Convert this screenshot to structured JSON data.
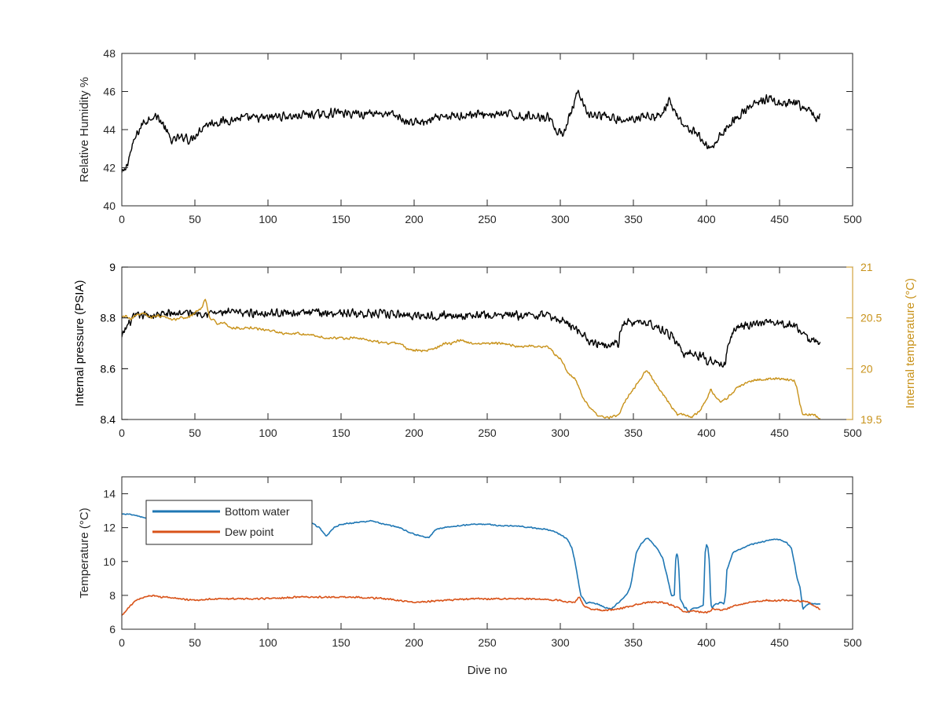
{
  "colors": {
    "humidity": "#000000",
    "pressure": "#000000",
    "internal_temperature": "#c8921a",
    "bottom_water": "#1f77b4",
    "dew_point": "#d95319",
    "axes": "#262626",
    "right_axis": "#c8921a"
  },
  "chart_data": [
    {
      "type": "line",
      "title": "",
      "xlabel": "",
      "ylabel": "Relative Humidity %",
      "xlim": [
        0,
        500
      ],
      "ylim": [
        40,
        48
      ],
      "xticks": [
        "0",
        "50",
        "100",
        "150",
        "200",
        "250",
        "300",
        "350",
        "400",
        "450",
        "500"
      ],
      "yticks": [
        "40",
        "42",
        "44",
        "46",
        "48"
      ],
      "series": [
        {
          "key": "rh",
          "x": [
            0,
            2,
            4,
            6,
            8,
            10,
            12,
            15,
            18,
            20,
            22,
            24,
            26,
            28,
            30,
            33,
            36,
            38,
            40,
            44,
            46,
            48,
            50,
            52,
            54,
            56,
            58,
            60,
            64,
            68,
            72,
            76,
            80,
            85,
            90,
            95,
            100,
            105,
            110,
            115,
            120,
            125,
            130,
            135,
            140,
            145,
            148,
            150,
            155,
            160,
            165,
            170,
            175,
            180,
            185,
            190,
            195,
            200,
            205,
            210,
            215,
            220,
            225,
            230,
            235,
            240,
            245,
            250,
            255,
            260,
            265,
            270,
            275,
            280,
            285,
            290,
            293,
            295,
            297,
            300,
            303,
            306,
            308,
            310,
            312,
            314,
            316,
            318,
            320,
            325,
            330,
            335,
            340,
            345,
            350,
            355,
            360,
            365,
            370,
            372,
            374,
            376,
            378,
            380,
            383,
            386,
            390,
            393,
            396,
            399,
            402,
            405,
            408,
            410,
            415,
            420,
            425,
            430,
            435,
            440,
            445,
            450,
            455,
            460,
            465,
            470,
            475,
            478
          ],
          "y": [
            41.7,
            41.8,
            42.3,
            42.8,
            43.3,
            43.7,
            44.0,
            44.4,
            44.5,
            44.7,
            44.7,
            44.7,
            44.5,
            44.3,
            44.0,
            43.5,
            43.4,
            43.6,
            43.5,
            43.7,
            43.4,
            43.5,
            43.7,
            43.9,
            44.0,
            44.2,
            44.3,
            44.3,
            44.4,
            44.4,
            44.5,
            44.5,
            44.6,
            44.6,
            44.6,
            44.6,
            44.6,
            44.7,
            44.7,
            44.7,
            44.7,
            44.8,
            44.8,
            44.8,
            44.8,
            44.9,
            44.9,
            44.9,
            44.8,
            44.9,
            44.8,
            44.9,
            44.9,
            44.8,
            44.8,
            44.6,
            44.4,
            44.4,
            44.4,
            44.4,
            44.6,
            44.6,
            44.7,
            44.7,
            44.8,
            44.8,
            44.8,
            44.8,
            44.8,
            44.8,
            44.8,
            44.7,
            44.7,
            44.7,
            44.7,
            44.7,
            44.6,
            44.4,
            43.9,
            43.8,
            44.0,
            44.6,
            45.0,
            45.5,
            45.9,
            45.6,
            45.2,
            44.9,
            44.8,
            44.7,
            44.7,
            44.6,
            44.5,
            44.4,
            44.6,
            44.7,
            44.7,
            44.7,
            44.8,
            45.2,
            45.5,
            45.3,
            45.0,
            44.8,
            44.4,
            44.1,
            44.0,
            43.8,
            43.5,
            43.3,
            43.0,
            43.2,
            43.5,
            43.8,
            44.2,
            44.6,
            44.9,
            45.2,
            45.4,
            45.6,
            45.6,
            45.3,
            45.3,
            45.4,
            45.2,
            45.0,
            44.6,
            44.7
          ],
          "noise": 0.55
        }
      ]
    },
    {
      "type": "line",
      "title": "",
      "xlabel": "",
      "ylabel": "Internal pressure (PSIA)",
      "ylabel_right": "Internal temperature (°C)",
      "xlim": [
        0,
        500
      ],
      "ylim": [
        8.4,
        9
      ],
      "ylim_right": [
        19.5,
        21
      ],
      "xticks": [
        "0",
        "50",
        "100",
        "150",
        "200",
        "250",
        "300",
        "350",
        "400",
        "450",
        "500"
      ],
      "yticks": [
        "8.4",
        "8.6",
        "8.8",
        "9"
      ],
      "yticks_right": [
        "19.5",
        "20",
        "20.5",
        "21"
      ],
      "series": [
        {
          "key": "pressure",
          "axis": "left",
          "x": [
            0,
            2,
            5,
            8,
            12,
            20,
            40,
            60,
            80,
            100,
            150,
            200,
            250,
            280,
            290,
            295,
            300,
            305,
            310,
            315,
            320,
            325,
            330,
            335,
            340,
            341,
            343,
            345,
            350,
            355,
            360,
            365,
            370,
            375,
            378,
            380,
            385,
            390,
            395,
            398,
            400,
            402,
            405,
            410,
            413,
            415,
            418,
            420,
            425,
            430,
            440,
            450,
            460,
            465,
            468,
            470,
            472,
            475,
            478
          ],
          "y": [
            8.72,
            8.75,
            8.78,
            8.8,
            8.81,
            8.81,
            8.82,
            8.82,
            8.82,
            8.82,
            8.82,
            8.81,
            8.81,
            8.81,
            8.81,
            8.8,
            8.79,
            8.78,
            8.76,
            8.74,
            8.71,
            8.7,
            8.7,
            8.7,
            8.7,
            8.75,
            8.77,
            8.78,
            8.78,
            8.78,
            8.78,
            8.77,
            8.75,
            8.73,
            8.72,
            8.7,
            8.66,
            8.66,
            8.65,
            8.65,
            8.62,
            8.64,
            8.63,
            8.61,
            8.62,
            8.7,
            8.74,
            8.76,
            8.77,
            8.77,
            8.78,
            8.78,
            8.77,
            8.75,
            8.72,
            8.71,
            8.71,
            8.71,
            8.71
          ],
          "noise": 0.04
        },
        {
          "key": "internal_temperature",
          "axis": "right",
          "x": [
            0,
            3,
            6,
            10,
            15,
            20,
            25,
            30,
            35,
            40,
            45,
            50,
            55,
            57,
            60,
            65,
            70,
            75,
            80,
            90,
            100,
            110,
            120,
            130,
            140,
            150,
            160,
            170,
            180,
            190,
            195,
            200,
            205,
            210,
            215,
            220,
            225,
            230,
            240,
            250,
            260,
            270,
            280,
            290,
            293,
            296,
            300,
            303,
            306,
            310,
            313,
            316,
            320,
            325,
            330,
            335,
            340,
            342,
            345,
            350,
            355,
            358,
            361,
            365,
            370,
            375,
            380,
            385,
            390,
            395,
            400,
            403,
            406,
            410,
            415,
            420,
            430,
            440,
            450,
            460,
            462,
            464,
            466,
            470,
            474,
            478
          ],
          "y": [
            20.5,
            20.52,
            20.48,
            20.53,
            20.55,
            20.5,
            20.52,
            20.5,
            20.48,
            20.5,
            20.5,
            20.55,
            20.6,
            20.7,
            20.5,
            20.45,
            20.45,
            20.4,
            20.4,
            20.4,
            20.38,
            20.35,
            20.35,
            20.33,
            20.3,
            20.3,
            20.3,
            20.28,
            20.25,
            20.25,
            20.2,
            20.18,
            20.18,
            20.18,
            20.2,
            20.25,
            20.25,
            20.28,
            20.25,
            20.25,
            20.25,
            20.22,
            20.22,
            20.22,
            20.2,
            20.15,
            20.1,
            20.02,
            19.95,
            19.9,
            19.8,
            19.7,
            19.62,
            19.55,
            19.52,
            19.52,
            19.55,
            19.6,
            19.7,
            19.8,
            19.9,
            19.98,
            19.95,
            19.85,
            19.75,
            19.65,
            19.55,
            19.55,
            19.52,
            19.58,
            19.7,
            19.8,
            19.72,
            19.68,
            19.72,
            19.8,
            19.88,
            19.9,
            19.9,
            19.88,
            19.8,
            19.65,
            19.55,
            19.55,
            19.55,
            19.5
          ],
          "noise": 0.03
        }
      ]
    },
    {
      "type": "line",
      "title": "",
      "xlabel": "Dive no",
      "ylabel": "Temperature (°C)",
      "xlim": [
        0,
        500
      ],
      "ylim": [
        6,
        15
      ],
      "xticks": [
        "0",
        "50",
        "100",
        "150",
        "200",
        "250",
        "300",
        "350",
        "400",
        "450",
        "500"
      ],
      "yticks": [
        "6",
        "8",
        "10",
        "12",
        "14"
      ],
      "legend": {
        "position": "top-left",
        "entries": [
          "Bottom water",
          "Dew point"
        ]
      },
      "series": [
        {
          "key": "bottom_water",
          "name": "Bottom water",
          "x": [
            0,
            5,
            10,
            15,
            20,
            30,
            40,
            50,
            60,
            70,
            80,
            90,
            100,
            110,
            120,
            130,
            135,
            140,
            145,
            150,
            160,
            170,
            180,
            190,
            200,
            205,
            210,
            212,
            215,
            220,
            230,
            240,
            250,
            260,
            270,
            280,
            290,
            295,
            300,
            305,
            308,
            310,
            312,
            314,
            316,
            318,
            320,
            325,
            330,
            335,
            340,
            345,
            348,
            350,
            352,
            355,
            358,
            360,
            363,
            366,
            368,
            370,
            372,
            374,
            376,
            378,
            379,
            380,
            381,
            382,
            384,
            385,
            386,
            388,
            390,
            395,
            398,
            399,
            400,
            401,
            402,
            403,
            404,
            405,
            406,
            408,
            410,
            412,
            413,
            414,
            416,
            418,
            420,
            425,
            430,
            440,
            445,
            450,
            455,
            458,
            460,
            462,
            464,
            465,
            466,
            468,
            470,
            475,
            478
          ],
          "y": [
            12.8,
            12.8,
            12.7,
            12.6,
            12.5,
            12.4,
            12.3,
            12.3,
            12.3,
            12.2,
            12.2,
            12.3,
            12.3,
            12.3,
            12.4,
            12.3,
            12.0,
            11.5,
            12.0,
            12.2,
            12.3,
            12.4,
            12.2,
            12.0,
            11.6,
            11.5,
            11.4,
            11.6,
            11.9,
            12.0,
            12.1,
            12.2,
            12.2,
            12.1,
            12.1,
            12.0,
            11.9,
            11.8,
            11.6,
            11.3,
            10.8,
            10.0,
            9.0,
            8.0,
            7.8,
            7.5,
            7.6,
            7.5,
            7.3,
            7.2,
            7.6,
            8.0,
            8.5,
            9.5,
            10.5,
            11.0,
            11.3,
            11.4,
            11.1,
            10.8,
            10.5,
            10.2,
            9.5,
            8.8,
            8.0,
            8.0,
            10.3,
            10.5,
            9.8,
            7.8,
            7.5,
            7.2,
            7.3,
            7.0,
            7.2,
            7.3,
            7.4,
            10.5,
            11.0,
            10.8,
            10.0,
            7.5,
            7.2,
            7.4,
            7.5,
            7.5,
            7.6,
            7.5,
            8.0,
            9.5,
            10.0,
            10.5,
            10.6,
            10.8,
            11.0,
            11.2,
            11.3,
            11.3,
            11.1,
            10.8,
            10.0,
            9.0,
            8.5,
            7.8,
            7.2,
            7.4,
            7.5,
            7.5,
            7.5
          ],
          "noise": 0.08
        },
        {
          "key": "dew_point",
          "name": "Dew point",
          "x": [
            0,
            3,
            6,
            10,
            15,
            20,
            25,
            30,
            40,
            50,
            60,
            80,
            100,
            120,
            140,
            160,
            180,
            200,
            220,
            240,
            260,
            280,
            300,
            305,
            310,
            313,
            316,
            320,
            330,
            340,
            350,
            360,
            370,
            380,
            385,
            390,
            395,
            400,
            405,
            410,
            420,
            430,
            440,
            450,
            460,
            470,
            475,
            478
          ],
          "y": [
            6.8,
            7.1,
            7.4,
            7.7,
            7.9,
            8.0,
            7.9,
            7.9,
            7.8,
            7.7,
            7.8,
            7.8,
            7.8,
            7.9,
            7.9,
            7.9,
            7.8,
            7.6,
            7.7,
            7.8,
            7.8,
            7.8,
            7.7,
            7.6,
            7.6,
            7.9,
            7.4,
            7.2,
            7.1,
            7.2,
            7.4,
            7.6,
            7.6,
            7.3,
            7.0,
            7.1,
            7.0,
            7.0,
            7.2,
            7.1,
            7.4,
            7.6,
            7.7,
            7.7,
            7.7,
            7.6,
            7.3,
            7.2
          ],
          "noise": 0.12
        }
      ]
    }
  ]
}
